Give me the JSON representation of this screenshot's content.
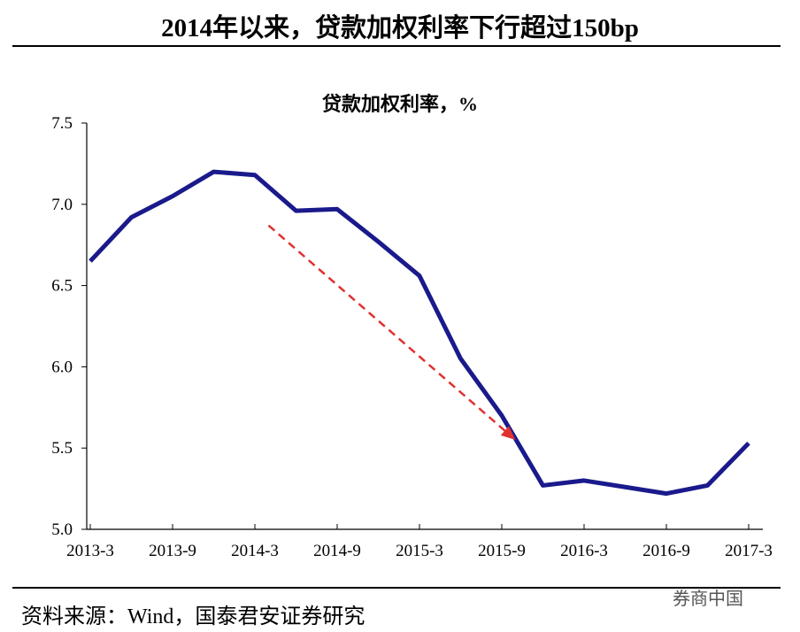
{
  "title": "2014年以来，贷款加权利率下行超过150bp",
  "source": "资料来源：Wind，国泰君安证券研究",
  "watermark": "券商中国",
  "chart_data": {
    "type": "line",
    "title": "贷款加权利率，%",
    "xlabel": "",
    "ylabel": "",
    "x": [
      "2013-3",
      "2013-6",
      "2013-9",
      "2013-12",
      "2014-3",
      "2014-6",
      "2014-9",
      "2014-12",
      "2015-3",
      "2015-6",
      "2015-9",
      "2015-12",
      "2016-3",
      "2016-6",
      "2016-9",
      "2016-12",
      "2017-3"
    ],
    "series": [
      {
        "values": [
          6.65,
          6.92,
          7.05,
          7.2,
          7.18,
          6.96,
          6.97,
          6.77,
          6.56,
          6.05,
          5.7,
          5.27,
          5.3,
          5.26,
          5.22,
          5.27,
          5.53
        ],
        "color": "#1a1a8c"
      }
    ],
    "x_tick_labels": [
      "2013-3",
      "2013-9",
      "2014-3",
      "2014-9",
      "2015-3",
      "2015-9",
      "2016-3",
      "2016-9",
      "2017-3"
    ],
    "y_tick_labels": [
      "5.0",
      "5.5",
      "6.0",
      "6.5",
      "7.0",
      "7.5"
    ],
    "ylim": [
      5.0,
      7.5
    ],
    "grid": false,
    "annotation": {
      "type": "dashed-arrow",
      "color": "#e03030",
      "from": {
        "x": "2014-4",
        "y": 6.87
      },
      "to": {
        "x": "2015-10",
        "y": 5.55
      }
    }
  }
}
